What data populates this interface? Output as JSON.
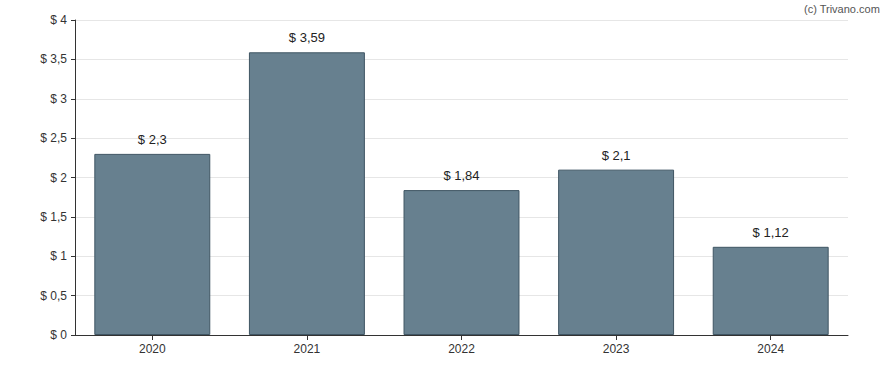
{
  "chart_data": {
    "type": "bar",
    "annotations": [
      "(c) Trivano.com"
    ],
    "categories": [
      "2020",
      "2021",
      "2022",
      "2023",
      "2024"
    ],
    "values": [
      2.3,
      3.59,
      1.84,
      2.1,
      1.12
    ],
    "value_labels": [
      "$ 2,3",
      "$ 3,59",
      "$ 1,84",
      "$ 2,1",
      "$ 1,12"
    ],
    "data_labels": true,
    "color": "#67808f",
    "ylim": [
      0,
      4
    ],
    "yticks": [
      {
        "value": 0,
        "label": "$ 0"
      },
      {
        "value": 0.5,
        "label": "$ 0,5"
      },
      {
        "value": 1,
        "label": "$ 1"
      },
      {
        "value": 1.5,
        "label": "$ 1,5"
      },
      {
        "value": 2,
        "label": "$ 2"
      },
      {
        "value": 2.5,
        "label": "$ 2,5"
      },
      {
        "value": 3,
        "label": "$ 3"
      },
      {
        "value": 3.5,
        "label": "$ 3,5"
      },
      {
        "value": 4,
        "label": "$ 4"
      }
    ],
    "grid": true
  }
}
